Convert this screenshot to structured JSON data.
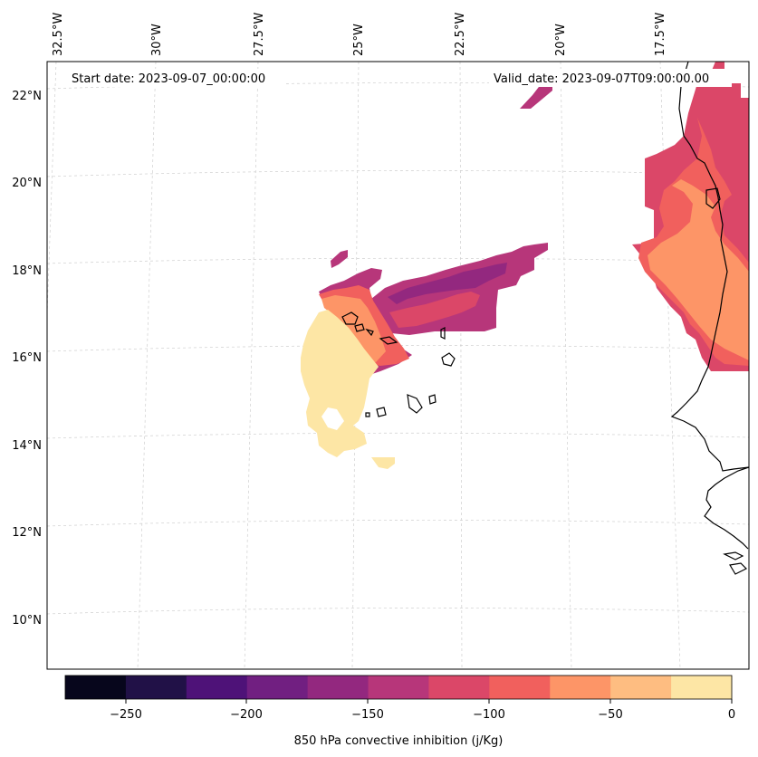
{
  "map": {
    "start_label": "Start date: 2023-09-07_00:00:00",
    "valid_label": "Valid_date: 2023-09-07T09:00:00.00",
    "lon_labels": [
      "32.5°W",
      "30°W",
      "27.5°W",
      "25°W",
      "22.5°W",
      "20°W",
      "17.5°W"
    ],
    "lat_labels": [
      "22°N",
      "20°N",
      "18°N",
      "16°N",
      "14°N",
      "12°N",
      "10°N"
    ],
    "grid": "on",
    "field": "850 hPa convective inhibition",
    "units": "j/Kg"
  },
  "colorbar": {
    "label": "850 hPa convective inhibition (j/Kg)",
    "ticks": [
      "−250",
      "−200",
      "−150",
      "−100",
      "−50",
      "0"
    ],
    "levels": [
      -275,
      -250,
      -225,
      -200,
      -175,
      -150,
      -125,
      -100,
      -75,
      -50,
      -25,
      0
    ],
    "colors": [
      "#07061c",
      "#211147",
      "#4e1278",
      "#711f81",
      "#93287f",
      "#b7367a",
      "#db4768",
      "#f1605d",
      "#fd9567",
      "#febd81",
      "#fde6a5"
    ]
  }
}
